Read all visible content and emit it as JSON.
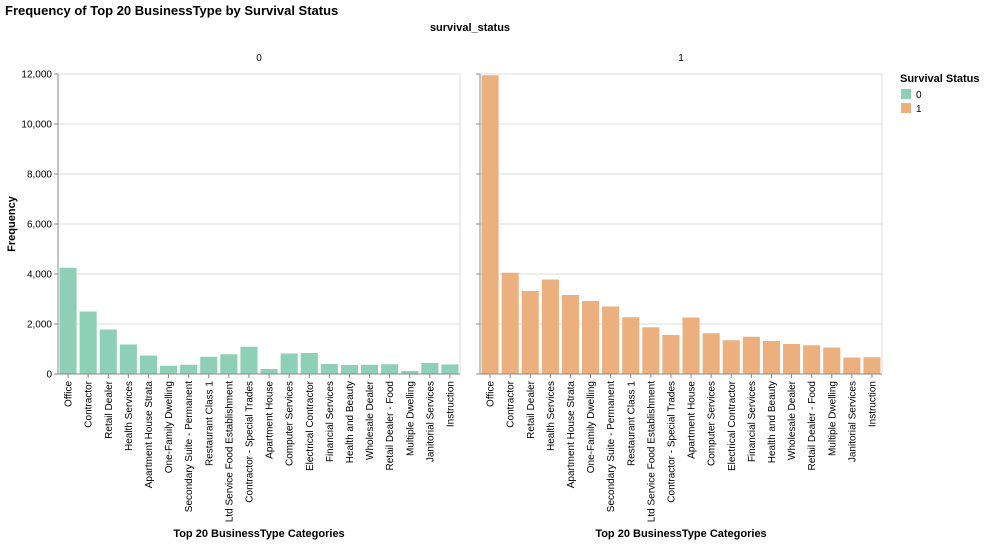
{
  "chart_data": {
    "type": "bar",
    "title": "Frequency of Top 20 BusinessType by Survival Status",
    "facet_title": "survival_status",
    "xlabel": "Top 20 BusinessType Categories",
    "ylabel": "Frequency",
    "ylim": [
      0,
      12000
    ],
    "yticks": [
      "0",
      "2,000",
      "4,000",
      "6,000",
      "8,000",
      "10,000",
      "12,000"
    ],
    "grid": true,
    "legend": {
      "title": "Survival Status",
      "position": "top-right",
      "items": [
        {
          "label": "0",
          "color": "#8ecfb8"
        },
        {
          "label": "1",
          "color": "#ecb07e"
        }
      ]
    },
    "categories": [
      "Office",
      "Contractor",
      "Retail Dealer",
      "Health Services",
      "Apartment House Strata",
      "One-Family Dwelling",
      "Secondary Suite - Permanent",
      "Restaurant Class 1",
      "Ltd Service Food Establishment",
      "Contractor - Special Trades",
      "Apartment House",
      "Computer Services",
      "Electrical Contractor",
      "Financial Services",
      "Health and Beauty",
      "Wholesale Dealer",
      "Retail Dealer - Food",
      "Multiple Dwelling",
      "Janitorial Services",
      "Instruction"
    ],
    "series": [
      {
        "name": "0",
        "color": "#8ecfb8",
        "values": [
          4250,
          2500,
          1780,
          1180,
          740,
          330,
          370,
          690,
          790,
          1090,
          200,
          820,
          840,
          400,
          360,
          370,
          390,
          120,
          440,
          380
        ]
      },
      {
        "name": "1",
        "color": "#ecb07e",
        "values": [
          11950,
          4050,
          3320,
          3780,
          3160,
          2920,
          2700,
          2270,
          1870,
          1560,
          2260,
          1630,
          1350,
          1490,
          1320,
          1200,
          1150,
          1060,
          660,
          670
        ]
      }
    ]
  }
}
